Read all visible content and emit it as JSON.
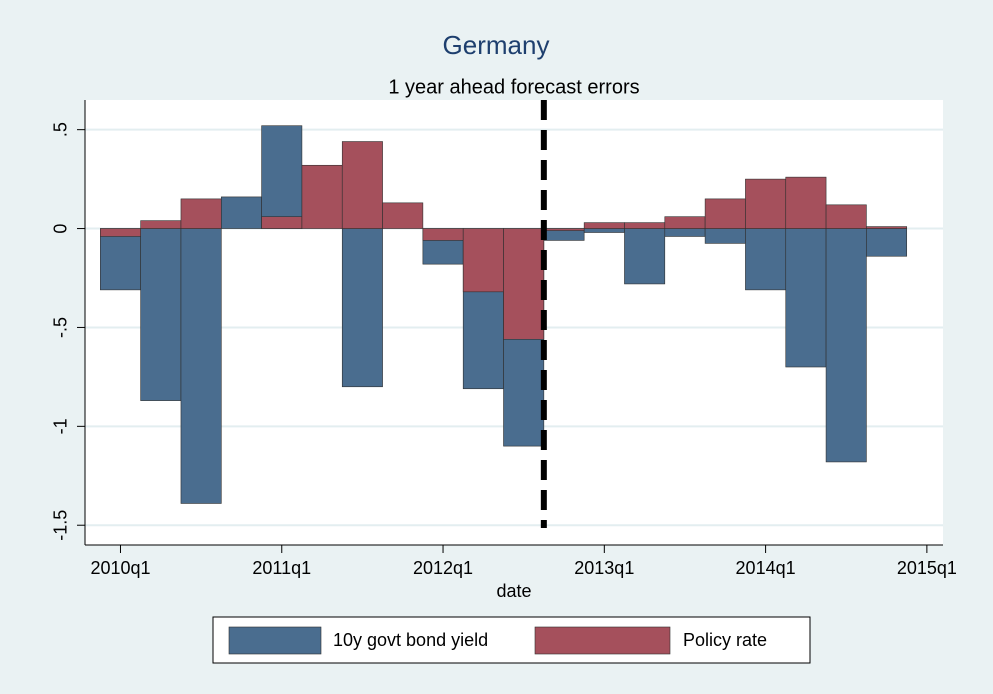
{
  "chart_data": {
    "type": "bar",
    "title": "Germany",
    "subtitle": "1 year ahead forecast errors",
    "x_label": "date",
    "x": [
      2010,
      2010.25,
      2010.5,
      2010.75,
      2011,
      2011.25,
      2011.5,
      2011.75,
      2012,
      2012.25,
      2012.5,
      2012.75,
      2013,
      2013.25,
      2013.5,
      2013.75,
      2014,
      2014.25,
      2014.5,
      2014.75
    ],
    "series": [
      {
        "name": "10y govt bond yield",
        "color": "#4a6d8f",
        "values": [
          -0.31,
          -0.87,
          -1.39,
          0.16,
          0.52,
          0,
          -0.8,
          0,
          -0.18,
          -0.81,
          -1.1,
          -0.06,
          -0.02,
          -0.28,
          -0.04,
          -0.075,
          -0.31,
          -0.7,
          -1.18,
          -0.14
        ]
      },
      {
        "name": "Policy rate",
        "color": "#a5505c",
        "values": [
          -0.04,
          0.04,
          0.15,
          0,
          0.06,
          0.32,
          0.44,
          0.13,
          -0.06,
          -0.32,
          -0.56,
          -0.01,
          0.03,
          0.03,
          0.06,
          0.15,
          0.25,
          0.26,
          0.12,
          0.01
        ]
      }
    ],
    "xlim": [
      2009.78,
      2015.1
    ],
    "xticks": [
      {
        "value": 2010,
        "label": "2010q1"
      },
      {
        "value": 2011,
        "label": "2011q1"
      },
      {
        "value": 2012,
        "label": "2012q1"
      },
      {
        "value": 2013,
        "label": "2013q1"
      },
      {
        "value": 2014,
        "label": "2014q1"
      },
      {
        "value": 2015,
        "label": "2015q1"
      }
    ],
    "ylim": [
      -1.6,
      0.65
    ],
    "yticks": [
      {
        "value": -1.5,
        "label": "-1.5"
      },
      -1,
      {
        "value": -0.5,
        "label": "-.5"
      },
      0,
      {
        "value": 0.5,
        "label": ".5"
      }
    ],
    "grid": true,
    "xline": 2012.625,
    "legend": "bottom"
  }
}
